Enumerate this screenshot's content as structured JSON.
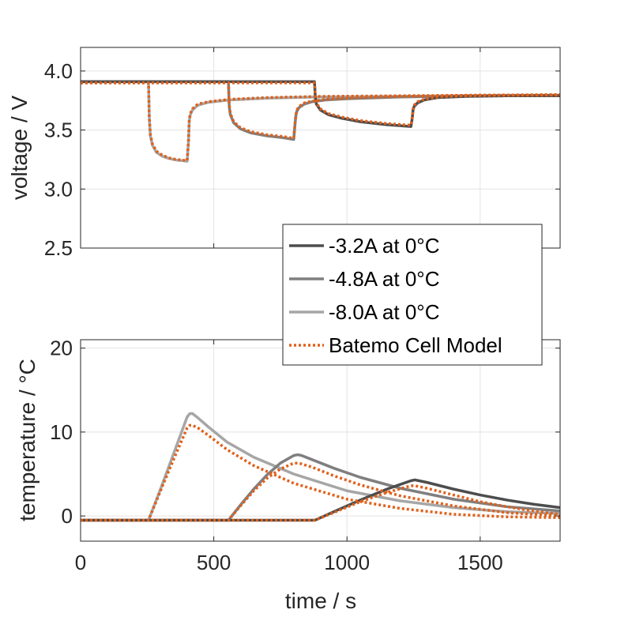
{
  "chart_data": [
    {
      "type": "line",
      "panel": "voltage",
      "xlabel": "",
      "ylabel": "voltage / V",
      "xlim": [
        0,
        1800
      ],
      "ylim": [
        2.5,
        4.2
      ],
      "xticks": [
        0,
        500,
        1000,
        1500
      ],
      "yticks": [
        2.5,
        3.0,
        3.5,
        4.0
      ],
      "yticklabels": [
        "2.5",
        "3.0",
        "3.5",
        "4.0"
      ],
      "grid": true,
      "series": [
        {
          "name": "-8.0A at 0°C",
          "color": "#a6a6a6",
          "style": "solid",
          "x": [
            0,
            255,
            258,
            262,
            270,
            285,
            305,
            330,
            360,
            385,
            400,
            405,
            408,
            412,
            420,
            440,
            480,
            560,
            700,
            900,
            1200,
            1500,
            1800
          ],
          "y": [
            3.91,
            3.91,
            3.6,
            3.45,
            3.37,
            3.31,
            3.28,
            3.26,
            3.245,
            3.24,
            3.235,
            3.4,
            3.58,
            3.63,
            3.67,
            3.71,
            3.735,
            3.755,
            3.77,
            3.78,
            3.785,
            3.79,
            3.79
          ]
        },
        {
          "name": "-4.8A at 0°C",
          "color": "#7f7f7f",
          "style": "solid",
          "x": [
            0,
            555,
            558,
            562,
            575,
            600,
            640,
            700,
            760,
            800,
            805,
            808,
            812,
            820,
            840,
            870,
            920,
            1000,
            1200,
            1500,
            1800
          ],
          "y": [
            3.91,
            3.91,
            3.7,
            3.63,
            3.56,
            3.51,
            3.475,
            3.45,
            3.435,
            3.42,
            3.55,
            3.62,
            3.66,
            3.69,
            3.72,
            3.74,
            3.755,
            3.765,
            3.78,
            3.79,
            3.795
          ]
        },
        {
          "name": "-3.2A at 0°C",
          "color": "#4d4d4d",
          "style": "solid",
          "x": [
            0,
            878,
            881,
            885,
            900,
            930,
            980,
            1050,
            1150,
            1240,
            1245,
            1248,
            1252,
            1265,
            1290,
            1340,
            1450,
            1600,
            1800
          ],
          "y": [
            3.91,
            3.91,
            3.78,
            3.72,
            3.67,
            3.63,
            3.6,
            3.57,
            3.545,
            3.53,
            3.6,
            3.67,
            3.7,
            3.73,
            3.755,
            3.775,
            3.785,
            3.79,
            3.79
          ]
        },
        {
          "name": "Batemo Cell Model",
          "color": "#e0601a",
          "style": "dotted",
          "x": [
            0,
            255,
            258,
            262,
            270,
            285,
            305,
            330,
            360,
            385,
            400,
            405,
            408,
            412,
            420,
            440,
            480,
            560,
            700,
            900,
            1200,
            1500,
            1800
          ],
          "y": [
            3.9,
            3.9,
            3.6,
            3.46,
            3.38,
            3.32,
            3.29,
            3.265,
            3.25,
            3.245,
            3.24,
            3.41,
            3.59,
            3.64,
            3.68,
            3.72,
            3.74,
            3.76,
            3.775,
            3.785,
            3.79,
            3.795,
            3.795
          ]
        },
        {
          "name": "Batemo Cell Model",
          "color": "#e0601a",
          "style": "dotted",
          "x": [
            0,
            555,
            558,
            562,
            575,
            600,
            640,
            700,
            760,
            800,
            805,
            808,
            812,
            820,
            840,
            870,
            920,
            1000,
            1200,
            1500,
            1800
          ],
          "y": [
            3.9,
            3.9,
            3.71,
            3.64,
            3.57,
            3.52,
            3.485,
            3.46,
            3.445,
            3.43,
            3.56,
            3.63,
            3.67,
            3.7,
            3.73,
            3.745,
            3.76,
            3.77,
            3.785,
            3.795,
            3.8
          ]
        },
        {
          "name": "Batemo Cell Model",
          "color": "#e0601a",
          "style": "dotted",
          "x": [
            0,
            878,
            881,
            885,
            900,
            930,
            980,
            1050,
            1150,
            1240,
            1245,
            1248,
            1252,
            1265,
            1290,
            1340,
            1450,
            1600,
            1800
          ],
          "y": [
            3.9,
            3.9,
            3.79,
            3.73,
            3.68,
            3.64,
            3.61,
            3.58,
            3.555,
            3.54,
            3.61,
            3.68,
            3.71,
            3.74,
            3.76,
            3.78,
            3.79,
            3.795,
            3.8
          ]
        }
      ]
    },
    {
      "type": "line",
      "panel": "temperature",
      "xlabel": "time / s",
      "ylabel": "temperature / °C",
      "xlim": [
        0,
        1800
      ],
      "ylim": [
        -3,
        21
      ],
      "xticks": [
        0,
        500,
        1000,
        1500
      ],
      "xticklabels": [
        "0",
        "500",
        "1000",
        "1500"
      ],
      "yticks": [
        0,
        10,
        20
      ],
      "yticklabels": [
        "0",
        "10",
        "20"
      ],
      "grid": true,
      "series": [
        {
          "name": "-8.0A at 0°C",
          "color": "#a6a6a6",
          "style": "solid",
          "x": [
            0,
            255,
            300,
            350,
            400,
            410,
            420,
            440,
            480,
            550,
            650,
            800,
            1000,
            1200,
            1400,
            1600,
            1800
          ],
          "y": [
            -0.5,
            -0.5,
            3.2,
            7.5,
            11.8,
            12.2,
            12.2,
            11.7,
            10.6,
            8.8,
            7.0,
            5.0,
            3.0,
            1.8,
            1.0,
            0.5,
            0.3
          ]
        },
        {
          "name": "-4.8A at 0°C",
          "color": "#7f7f7f",
          "style": "solid",
          "x": [
            0,
            555,
            600,
            650,
            700,
            750,
            800,
            815,
            830,
            870,
            950,
            1050,
            1200,
            1400,
            1600,
            1800
          ],
          "y": [
            -0.5,
            -0.5,
            1.3,
            3.2,
            4.9,
            6.3,
            7.2,
            7.3,
            7.2,
            6.7,
            5.7,
            4.6,
            3.3,
            2.0,
            1.1,
            0.6
          ]
        },
        {
          "name": "-3.2A at 0°C",
          "color": "#4d4d4d",
          "style": "solid",
          "x": [
            0,
            880,
            950,
            1050,
            1150,
            1240,
            1255,
            1270,
            1300,
            1400,
            1500,
            1600,
            1700,
            1800
          ],
          "y": [
            -0.5,
            -0.5,
            0.5,
            1.9,
            3.2,
            4.2,
            4.3,
            4.2,
            4.0,
            3.2,
            2.5,
            1.9,
            1.4,
            1.0
          ]
        },
        {
          "name": "Batemo Cell Model",
          "color": "#e0601a",
          "style": "dotted",
          "x": [
            0,
            255,
            300,
            350,
            400,
            410,
            420,
            440,
            480,
            550,
            650,
            800,
            1000,
            1200,
            1400,
            1600,
            1800
          ],
          "y": [
            -0.5,
            -0.5,
            3.0,
            6.8,
            10.5,
            10.8,
            10.8,
            10.5,
            9.6,
            7.9,
            6.0,
            3.9,
            2.0,
            0.9,
            0.2,
            -0.1,
            -0.2
          ]
        },
        {
          "name": "Batemo Cell Model",
          "color": "#e0601a",
          "style": "dotted",
          "x": [
            0,
            555,
            600,
            650,
            700,
            750,
            800,
            815,
            830,
            870,
            950,
            1050,
            1200,
            1400,
            1600,
            1800
          ],
          "y": [
            -0.5,
            -0.5,
            1.2,
            3.0,
            4.5,
            5.6,
            6.3,
            6.3,
            6.2,
            5.8,
            4.8,
            3.7,
            2.4,
            1.2,
            0.4,
            0.0
          ]
        },
        {
          "name": "Batemo Cell Model",
          "color": "#e0601a",
          "style": "dotted",
          "x": [
            0,
            880,
            950,
            1050,
            1150,
            1240,
            1255,
            1270,
            1300,
            1400,
            1500,
            1600,
            1700,
            1800
          ],
          "y": [
            -0.5,
            -0.5,
            0.4,
            1.7,
            2.8,
            3.6,
            3.6,
            3.5,
            3.3,
            2.5,
            1.7,
            1.1,
            0.6,
            0.2
          ]
        }
      ]
    }
  ],
  "legend": {
    "placement": "between panels, right",
    "entries": [
      {
        "label": "-3.2A at 0°C",
        "color": "#4d4d4d",
        "style": "solid"
      },
      {
        "label": "-4.8A at 0°C",
        "color": "#7f7f7f",
        "style": "solid"
      },
      {
        "label": "-8.0A at 0°C",
        "color": "#a6a6a6",
        "style": "solid"
      },
      {
        "label": "Batemo Cell Model",
        "color": "#e0601a",
        "style": "dotted"
      }
    ]
  }
}
